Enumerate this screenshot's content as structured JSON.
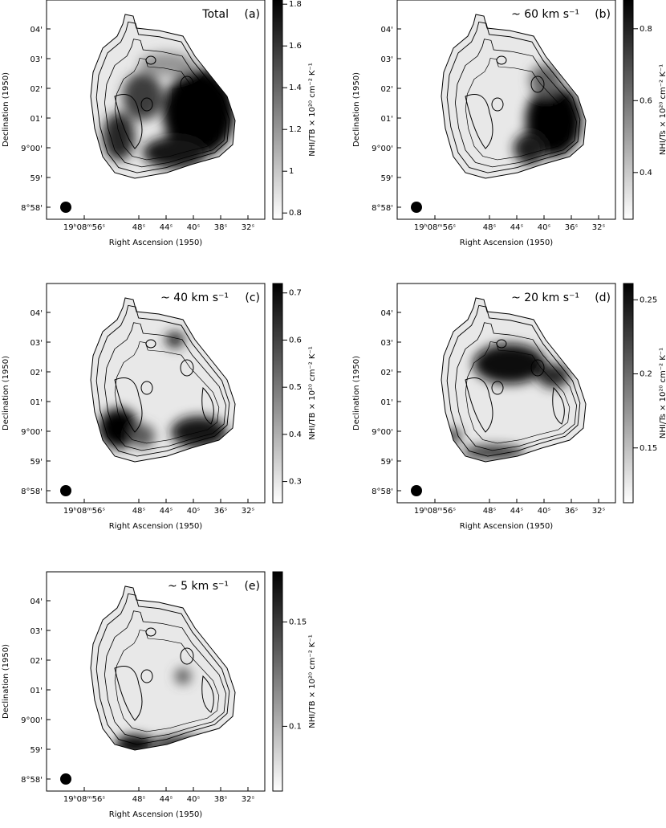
{
  "x_label": "Right Ascension (1950)",
  "y_label": "Declination (1950)",
  "dec_ticks": [
    "04'",
    "03'",
    "02'",
    "01'",
    "9°00'",
    "59'",
    "8°58'"
  ],
  "panels": [
    {
      "label": "(a)",
      "title": "Total",
      "cbar_label": "NHI/TB × 10²⁰ cm⁻² K⁻¹",
      "cbar_lim": [
        0.77,
        1.82
      ],
      "cbar_ticks": [
        1.8,
        1.6,
        1.4,
        1.2,
        1,
        0.8
      ],
      "x_ticks": [
        "19ʰ08ᵐ56ˢ",
        "48ˢ",
        "44ˢ",
        "40ˢ",
        "38ˢ",
        "32ˢ"
      ]
    },
    {
      "label": "(b)",
      "title": "~ 60 km s⁻¹",
      "cbar_label": "NHI/Ts × 10²⁰ cm⁻² K⁻¹",
      "cbar_lim": [
        0.27,
        0.88
      ],
      "cbar_ticks": [
        0.8,
        0.6,
        0.4
      ],
      "x_ticks": [
        "19ʰ08ᵐ56ˢ",
        "48ˢ",
        "44ˢ",
        "40ˢ",
        "36ˢ",
        "32ˢ"
      ]
    },
    {
      "label": "(c)",
      "title": "~ 40 km s⁻¹",
      "cbar_label": "NHI/TB × 10²⁰ cm⁻² K⁻¹",
      "cbar_lim": [
        0.255,
        0.72
      ],
      "cbar_ticks": [
        0.7,
        0.6,
        0.5,
        0.4,
        0.3
      ],
      "x_ticks": [
        "19ʰ08ᵐ56ˢ",
        "48ˢ",
        "44ˢ",
        "40ˢ",
        "36ˢ",
        "32ˢ"
      ]
    },
    {
      "label": "(d)",
      "title": "~ 20 km s⁻¹",
      "cbar_label": "NHI/Ts × 10²⁰ cm⁻² K⁻¹",
      "cbar_lim": [
        0.113,
        0.261
      ],
      "cbar_ticks": [
        0.25,
        0.2,
        0.15
      ],
      "x_ticks": [
        "19ʰ08ᵐ56ˢ",
        "48ˢ",
        "44ˢ",
        "40ˢ",
        "36ˢ",
        "32ˢ"
      ]
    },
    {
      "label": "(e)",
      "title": "~ 5 km s⁻¹",
      "cbar_label": "NHI/TB × 10²⁰ cm⁻² K⁻¹",
      "cbar_lim": [
        0.069,
        0.174
      ],
      "cbar_ticks": [
        0.15,
        0.1
      ],
      "x_ticks": [
        "19ʰ08ᵐ56ˢ",
        "48ˢ",
        "44ˢ",
        "40ˢ",
        "38ˢ",
        "32ˢ"
      ]
    }
  ]
}
